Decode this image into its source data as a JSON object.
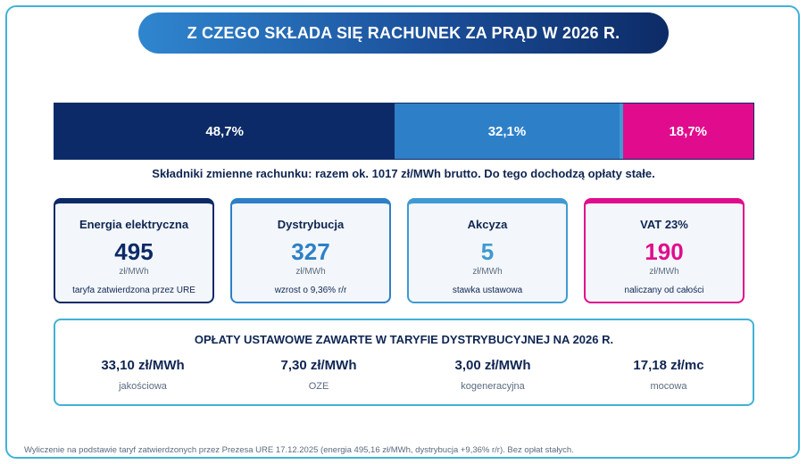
{
  "title": "Z CZEGO SKŁADA SIĘ RACHUNEK ZA PRĄD W 2026 R.",
  "chart_data": {
    "type": "bar",
    "orientation": "horizontal-stacked",
    "categories": [
      "Energia elektryczna",
      "Dystrybucja",
      "Akcyza",
      "VAT 23%"
    ],
    "values": [
      48.7,
      32.1,
      0.5,
      18.7
    ],
    "labels": [
      "48,7%",
      "32,1%",
      "",
      "18,7%"
    ],
    "colors": [
      "#0c2a67",
      "#2d80c8",
      "#3f9ad3",
      "#e10c8d"
    ],
    "title": "Z CZEGO SKŁADA SIĘ RACHUNEK ZA PRĄD W 2026 R."
  },
  "bar_caption": "Składniki zmienne rachunku: razem ok. 1017 zł/MWh brutto. Do tego dochodzą opłaty stałe.",
  "cards": [
    {
      "title": "Energia elektryczna",
      "value": "495",
      "unit": "zł/MWh",
      "note": "taryfa zatwierdzona przez URE",
      "color": "#0c2a67"
    },
    {
      "title": "Dystrybucja",
      "value": "327",
      "unit": "zł/MWh",
      "note": "wzrost o 9,36% r/r",
      "color": "#2d80c8"
    },
    {
      "title": "Akcyza",
      "value": "5",
      "unit": "zł/MWh",
      "note": "stawka ustawowa",
      "color": "#3f9ad3"
    },
    {
      "title": "VAT 23%",
      "value": "190",
      "unit": "zł/MWh",
      "note": "naliczany od całości",
      "color": "#e10c8d"
    }
  ],
  "fees": {
    "title": "OPŁATY USTAWOWE ZAWARTE W TARYFIE DYSTRYBUCYJNEJ NA 2026 R.",
    "items": [
      {
        "value": "33,10 zł/MWh",
        "label": "jakościowa"
      },
      {
        "value": "7,30 zł/MWh",
        "label": "OZE"
      },
      {
        "value": "3,00 zł/MWh",
        "label": "kogeneracyjna"
      },
      {
        "value": "17,18 zł/mc",
        "label": "mocowa"
      }
    ]
  },
  "footnote": "Wyliczenie na podstawie taryf zatwierdzonych przez Prezesa URE 17.12.2025 (energia 495,16 zł/MWh, dystrybucja +9,36% r/r). Bez opłat stałych."
}
